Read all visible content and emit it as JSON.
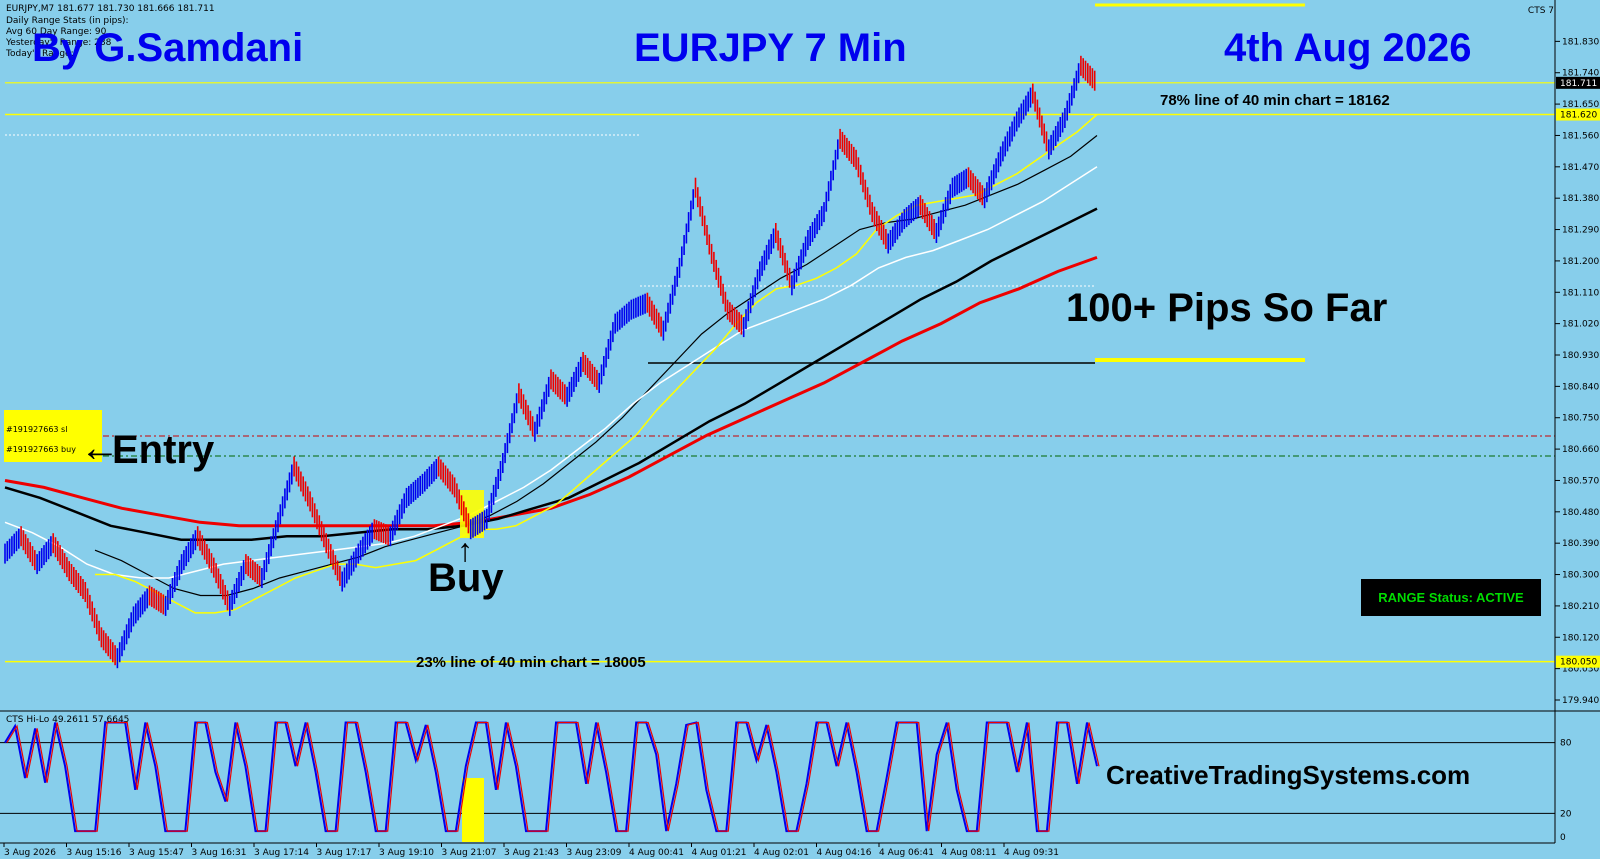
{
  "header": {
    "symbol_line": "EURJPY,M7  181.677 181.730 181.666 181.711",
    "stats_lines": [
      "Daily Range Stats (in pips):",
      "Avg 60 Day Range: 90",
      "Yesterday's Range: 288",
      "Today's Range:"
    ],
    "indicator_label": "CTS 7"
  },
  "titles": {
    "author": "By G.Samdani",
    "pair": "EURJPY 7 Min",
    "date": "4th Aug 2026",
    "pips": "100+ Pips So Far",
    "website": "CreativeTradingSystems.com"
  },
  "annotations": {
    "entry": "Entry",
    "buy": "Buy",
    "line78": "78% line of 40 min chart = 18162",
    "line23": "23% line of 40 min chart = 18005",
    "order_sl": "#191927663 sl",
    "order_buy": "#191927663 buy",
    "range_status": "RANGE Status: ACTIVE"
  },
  "colors": {
    "background": "#87CEEB",
    "bull": "#0000ee",
    "bear": "#ee0000",
    "ma_yellow": "#ffff00",
    "ma_white": "#ffffff",
    "ma_black": "#000000",
    "ma_red": "#ee0000",
    "title_blue": "#0000ee"
  },
  "chart_data": {
    "type": "line",
    "title": "EURJPY 7 Min",
    "ylim": [
      179.94,
      181.92
    ],
    "y_ticks": [
      "181.830",
      "181.740",
      "181.650",
      "181.560",
      "181.470",
      "181.380",
      "181.290",
      "181.200",
      "181.110",
      "181.020",
      "180.930",
      "180.840",
      "180.750",
      "180.660",
      "180.570",
      "180.480",
      "180.390",
      "180.300",
      "180.210",
      "180.120",
      "180.030",
      "179.940"
    ],
    "price_tags": [
      "181.711",
      "181.620",
      "180.050"
    ],
    "x_labels": [
      "3 Aug 2026",
      "3 Aug 15:16",
      "3 Aug 15:47",
      "3 Aug 16:31",
      "3 Aug 17:14",
      "3 Aug 17:17",
      "3 Aug 19:10",
      "3 Aug 21:07",
      "3 Aug 21:43",
      "3 Aug 23:09",
      "4 Aug 00:41",
      "4 Aug 01:21",
      "4 Aug 02:01",
      "4 Aug 04:16",
      "4 Aug 06:41",
      "4 Aug 08:11",
      "4 Aug 09:31"
    ],
    "series": [
      {
        "name": "price",
        "values": [
          180.36,
          180.41,
          180.33,
          180.39,
          180.31,
          180.25,
          180.12,
          180.06,
          180.18,
          180.24,
          180.21,
          180.33,
          180.41,
          180.32,
          180.21,
          180.33,
          180.29,
          180.45,
          180.61,
          180.51,
          180.39,
          180.28,
          180.36,
          180.43,
          180.41,
          180.52,
          180.56,
          180.61,
          180.55,
          180.43,
          180.46,
          180.62,
          180.82,
          180.71,
          180.86,
          180.81,
          180.91,
          180.85,
          181.02,
          181.06,
          181.08,
          181.0,
          181.18,
          181.41,
          181.22,
          181.06,
          181.01,
          181.17,
          181.28,
          181.13,
          181.26,
          181.34,
          181.55,
          181.49,
          181.34,
          181.25,
          181.32,
          181.36,
          181.28,
          181.41,
          181.44,
          181.38,
          181.5,
          181.6,
          181.68,
          181.52,
          181.61,
          181.76,
          181.71
        ]
      },
      {
        "name": "ma_yellow",
        "values": [
          180.3,
          180.3,
          180.28,
          180.25,
          180.22,
          180.19,
          180.19,
          180.2,
          180.23,
          180.26,
          180.29,
          180.31,
          180.33,
          180.33,
          180.32,
          180.33,
          180.34,
          180.37,
          180.4,
          180.43,
          180.43,
          180.44,
          180.47,
          180.5,
          180.55,
          180.6,
          180.65,
          180.7,
          180.77,
          180.83,
          180.89,
          180.95,
          181.02,
          181.08,
          181.12,
          181.13,
          181.15,
          181.18,
          181.22,
          181.29,
          181.33,
          181.36,
          181.37,
          181.38,
          181.39,
          181.42,
          181.45,
          181.49,
          181.53,
          181.57,
          181.62
        ]
      },
      {
        "name": "ma_white",
        "values": [
          180.45,
          180.42,
          180.38,
          180.33,
          180.3,
          180.29,
          180.29,
          180.31,
          180.33,
          180.34,
          180.35,
          180.36,
          180.37,
          180.38,
          180.39,
          180.41,
          180.44,
          180.47,
          180.51,
          180.55,
          180.6,
          180.66,
          180.72,
          180.79,
          180.85,
          180.9,
          180.95,
          181.0,
          181.03,
          181.06,
          181.09,
          181.13,
          181.18,
          181.21,
          181.23,
          181.26,
          181.29,
          181.33,
          181.37,
          181.42,
          181.47
        ]
      },
      {
        "name": "ma_black_thin",
        "values": [
          180.37,
          180.34,
          180.3,
          180.26,
          180.24,
          180.24,
          180.26,
          180.29,
          180.31,
          180.33,
          180.35,
          180.38,
          180.4,
          180.42,
          180.44,
          180.47,
          180.51,
          180.56,
          180.62,
          180.68,
          180.75,
          180.83,
          180.91,
          180.99,
          181.05,
          181.1,
          181.15,
          181.19,
          181.24,
          181.29,
          181.31,
          181.32,
          181.34,
          181.36,
          181.39,
          181.42,
          181.46,
          181.5,
          181.56
        ]
      },
      {
        "name": "ma_black_thick",
        "values": [
          180.55,
          180.52,
          180.48,
          180.44,
          180.42,
          180.4,
          180.4,
          180.4,
          180.41,
          180.41,
          180.42,
          180.43,
          180.43,
          180.44,
          180.46,
          180.49,
          180.52,
          180.57,
          180.62,
          180.68,
          180.74,
          180.79,
          180.85,
          180.91,
          180.97,
          181.03,
          181.09,
          181.14,
          181.2,
          181.25,
          181.3,
          181.35
        ]
      },
      {
        "name": "ma_red",
        "values": [
          180.57,
          180.55,
          180.52,
          180.49,
          180.47,
          180.45,
          180.44,
          180.44,
          180.44,
          180.44,
          180.44,
          180.44,
          180.45,
          180.47,
          180.49,
          180.53,
          180.58,
          180.64,
          180.7,
          180.75,
          180.8,
          180.85,
          180.91,
          180.97,
          181.02,
          181.08,
          181.12,
          181.17,
          181.21
        ]
      }
    ],
    "indicator": {
      "name": "CTS Hi-Lo",
      "label": "CTS Hi-Lo 49.2611 57.6645",
      "levels": [
        80,
        20
      ],
      "ylim": [
        0,
        100
      ],
      "values": [
        80,
        94,
        50,
        92,
        46,
        97,
        60,
        5,
        5,
        5,
        97,
        97,
        97,
        40,
        97,
        60,
        5,
        5,
        5,
        97,
        97,
        55,
        30,
        97,
        60,
        5,
        5,
        97,
        97,
        60,
        97,
        55,
        5,
        5,
        97,
        97,
        55,
        5,
        5,
        97,
        97,
        65,
        95,
        55,
        5,
        5,
        60,
        97,
        97,
        40,
        97,
        60,
        5,
        5,
        5,
        97,
        97,
        97,
        45,
        97,
        55,
        5,
        5,
        97,
        97,
        70,
        5,
        45,
        95,
        97,
        40,
        5,
        5,
        97,
        97,
        65,
        95,
        55,
        5,
        5,
        45,
        97,
        97,
        60,
        97,
        55,
        5,
        5,
        50,
        97,
        97,
        97,
        5,
        70,
        97,
        40,
        5,
        5,
        97,
        97,
        97,
        55,
        97,
        5,
        5,
        97,
        97,
        45,
        97,
        60
      ]
    }
  }
}
